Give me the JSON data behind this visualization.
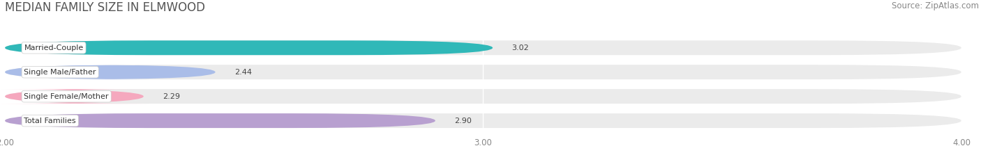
{
  "title": "MEDIAN FAMILY SIZE IN ELMWOOD",
  "source": "Source: ZipAtlas.com",
  "categories": [
    "Married-Couple",
    "Single Male/Father",
    "Single Female/Mother",
    "Total Families"
  ],
  "values": [
    3.02,
    2.44,
    2.29,
    2.9
  ],
  "bar_colors": [
    "#30b8b8",
    "#aabde8",
    "#f5a8be",
    "#b8a0d0"
  ],
  "xlim_min": 2.0,
  "xlim_max": 4.0,
  "xticks": [
    2.0,
    3.0,
    4.0
  ],
  "xtick_labels": [
    "2.00",
    "3.00",
    "4.00"
  ],
  "background_color": "#ffffff",
  "bar_bg_color": "#ebebeb",
  "title_fontsize": 12,
  "source_fontsize": 8.5,
  "label_fontsize": 8,
  "value_fontsize": 8,
  "bar_height": 0.6,
  "bar_rounding": 0.3
}
